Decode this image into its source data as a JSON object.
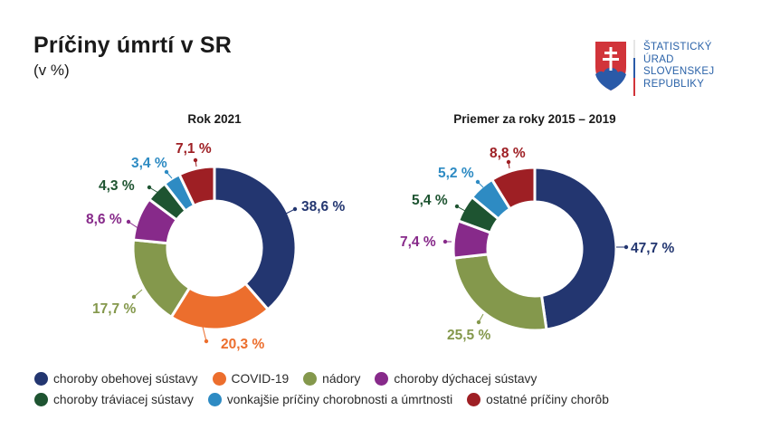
{
  "header": {
    "title": "Príčiny úmrtí v SR",
    "subtitle": "(v %)"
  },
  "logo": {
    "lines": [
      "ŠTATISTICKÝ",
      "ÚRAD",
      "SLOVENSKEJ",
      "REPUBLIKY"
    ],
    "text_color": "#2a62a8"
  },
  "colors": {
    "choroby obehovej sústavy": "#233670",
    "COVID-19": "#ec6e2d",
    "nádory": "#84984c",
    "choroby dýchacej sústavy": "#872a8a",
    "choroby tráviacej sústavy": "#1e5431",
    "vonkajšie príčiny chorobnosti a úmrtnosti": "#2e8bc3",
    "ostatné príčiny chorôb": "#9e1f24"
  },
  "chart_data": [
    {
      "type": "pie",
      "variant": "donut",
      "title": "Rok 2021",
      "unit": "%",
      "categories": [
        "choroby obehovej sústavy",
        "COVID-19",
        "nádory",
        "choroby dýchacej sústavy",
        "choroby tráviacej sústavy",
        "vonkajšie príčiny chorobnosti a úmrtnosti",
        "ostatné príčiny chorôb"
      ],
      "values": [
        38.6,
        20.3,
        17.7,
        8.6,
        4.3,
        3.4,
        7.1
      ],
      "labels": [
        "38,6 %",
        "20,3 %",
        "17,7 %",
        "8,6 %",
        "4,3 %",
        "3,4 %",
        "7,1 %"
      ],
      "start": "12 o'clock",
      "direction": "clockwise"
    },
    {
      "type": "pie",
      "variant": "donut",
      "title": "Priemer za roky 2015 – 2019",
      "unit": "%",
      "categories": [
        "choroby obehovej sústavy",
        "nádory",
        "choroby dýchacej sústavy",
        "choroby tráviacej sústavy",
        "vonkajšie príčiny chorobnosti a úmrtnosti",
        "ostatné príčiny chorôb"
      ],
      "values": [
        47.7,
        25.5,
        7.4,
        5.4,
        5.2,
        8.8
      ],
      "labels": [
        "47,7 %",
        "25,5 %",
        "7,4 %",
        "5,4 %",
        "5,2 %",
        "8,8 %"
      ],
      "start": "12 o'clock",
      "direction": "clockwise"
    }
  ],
  "legend": {
    "rows": [
      [
        "choroby obehovej sústavy",
        "COVID-19",
        "nádory",
        "choroby dýchacej sústavy"
      ],
      [
        "choroby tráviacej sústavy",
        "vonkajšie príčiny chorobnosti a úmrtnosti",
        "ostatné príčiny chorôb"
      ]
    ],
    "placement": "bottom"
  }
}
